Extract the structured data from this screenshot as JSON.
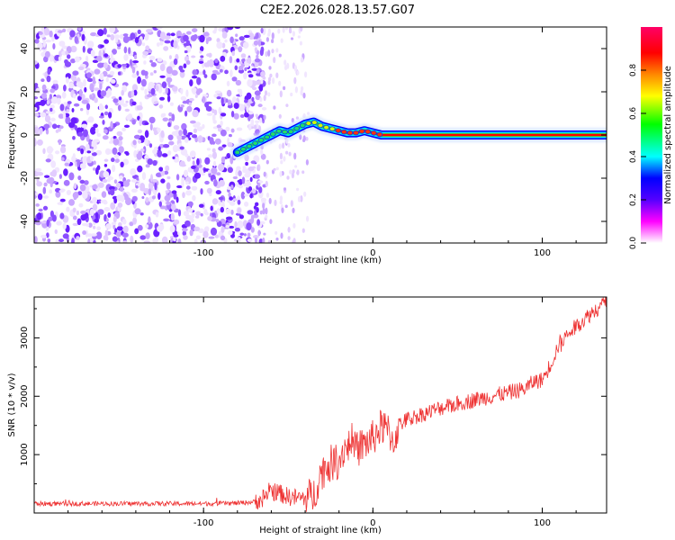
{
  "title": "C2E2.2026.028.13.57.G07",
  "chart_data": [
    {
      "type": "heatmap",
      "xlabel": "Height of straight line (km)",
      "ylabel": "Frequency (Hz)",
      "xlim": [
        -200,
        138
      ],
      "ylim": [
        -50,
        50
      ],
      "x_ticks": [
        -100,
        0,
        100
      ],
      "y_ticks": [
        -40,
        -20,
        0,
        20,
        40
      ],
      "colorbar": {
        "label": "Normalized spectral amplitude",
        "range": [
          0,
          1
        ],
        "ticks": [
          "0.0",
          "0.2",
          "0.4",
          "0.6",
          "0.8"
        ],
        "colors": [
          "#ffffff",
          "#ff00ff",
          "#5500ff",
          "#0000ff",
          "#00ffff",
          "#00ff00",
          "#ffff00",
          "#ff8800",
          "#ff0000",
          "#ff0066"
        ]
      },
      "noise_region_x": [
        -200,
        -70
      ],
      "ridge": {
        "x": [
          -80,
          -75,
          -70,
          -65,
          -60,
          -55,
          -50,
          -45,
          -40,
          -35,
          -30,
          -25,
          -20,
          -15,
          -10,
          -5,
          0,
          5,
          10,
          20,
          40,
          60,
          80,
          100,
          120,
          138
        ],
        "freq": [
          -8,
          -6,
          -4,
          -2,
          0,
          2,
          1,
          3,
          5,
          6,
          4,
          3,
          2,
          1,
          1,
          2,
          1,
          0,
          0,
          0,
          0,
          0,
          0,
          0,
          0,
          0
        ],
        "amplitude": [
          0.3,
          0.35,
          0.35,
          0.4,
          0.45,
          0.45,
          0.4,
          0.45,
          0.5,
          0.55,
          0.5,
          0.6,
          0.8,
          0.85,
          0.85,
          0.8,
          0.85,
          0.85,
          0.9,
          0.9,
          0.9,
          0.9,
          0.9,
          0.9,
          0.9,
          0.9
        ]
      }
    },
    {
      "type": "line",
      "xlabel": "Height of straight line (km)",
      "ylabel": "SNR (10 * v/v)",
      "xlim": [
        -200,
        138
      ],
      "ylim": [
        0,
        3700
      ],
      "x_ticks": [
        -100,
        0,
        100
      ],
      "y_ticks": [
        1000,
        2000,
        3000
      ],
      "color": "#ee3333",
      "series": [
        {
          "x": [
            -200,
            -180,
            -160,
            -140,
            -120,
            -100,
            -90,
            -80,
            -70,
            -65,
            -60,
            -55,
            -50,
            -45,
            -40,
            -35,
            -32,
            -30,
            -25,
            -20,
            -18,
            -15,
            -10,
            -5,
            0,
            5,
            10,
            12,
            15,
            20,
            30,
            40,
            50,
            60,
            70,
            80,
            90,
            95,
            100,
            105,
            110,
            120,
            130,
            138
          ],
          "y": [
            160,
            160,
            160,
            160,
            160,
            160,
            165,
            170,
            190,
            260,
            380,
            340,
            280,
            260,
            250,
            300,
            580,
            720,
            850,
            900,
            1050,
            1180,
            1080,
            1180,
            1280,
            1480,
            1380,
            1180,
            1500,
            1600,
            1700,
            1800,
            1870,
            1940,
            2000,
            2060,
            2130,
            2250,
            2280,
            2550,
            2900,
            3200,
            3450,
            3620
          ]
        }
      ]
    }
  ]
}
